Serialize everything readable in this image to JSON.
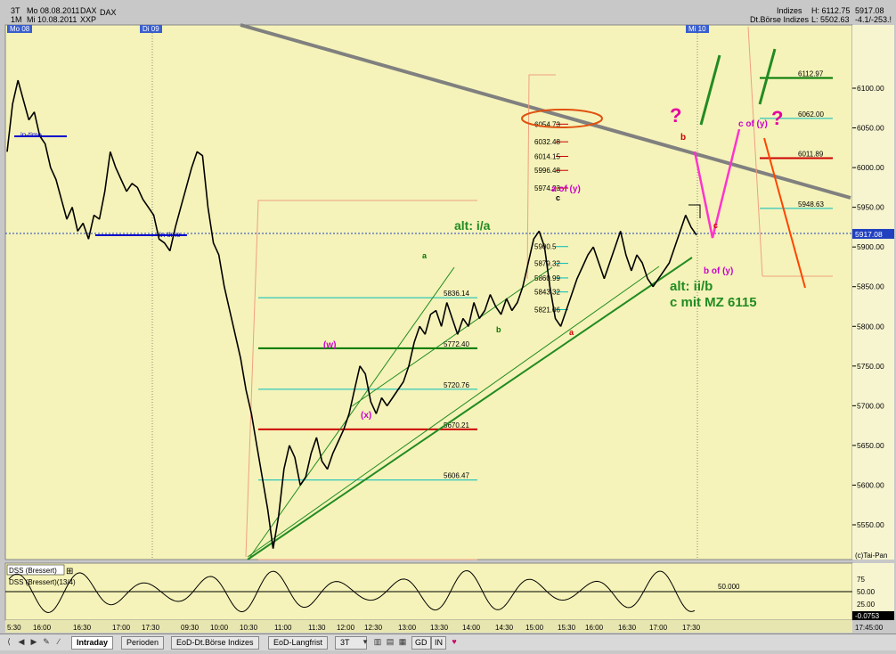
{
  "header": {
    "left": {
      "periods": [
        "3T",
        "1M"
      ],
      "dates": [
        "Mo 08.08.2011",
        "Mi 10.08.2011"
      ],
      "symbols": [
        "DAX",
        "XXP"
      ],
      "name": "DAX"
    },
    "right": {
      "group": "Indizes",
      "exchange": "Dt.Börse Indizes",
      "high": "H: 6112.75",
      "low": "L: 5502.63",
      "last": "5917.08",
      "change": "-4.1/-253.!"
    }
  },
  "day_tags": [
    "Mo 08",
    "Di 09",
    "Mi 10"
  ],
  "price_axis": {
    "labels": [
      "6100.00",
      "6050.00",
      "6000.00",
      "5950.00",
      "5900.00",
      "5850.00",
      "5800.00",
      "5750.00",
      "5700.00",
      "5650.00",
      "5600.00",
      "5550.00"
    ],
    "current": "5917.08",
    "credit": "(c)Tai-Pan"
  },
  "time_axis": {
    "labels": [
      "5:30",
      "16:00",
      "16:30",
      "17:00",
      "17:30",
      "09:30",
      "10:00",
      "10:30",
      "11:00",
      "11:30",
      "12:00",
      "12:30",
      "13:00",
      "13:30",
      "14:00",
      "14:30",
      "15:00",
      "15:30",
      "16:00",
      "16:30",
      "17:00",
      "17:30"
    ],
    "clock": "17:45:00"
  },
  "chart_data": {
    "type": "line",
    "title": "DAX",
    "ylim": [
      5505,
      6135
    ],
    "grid": false,
    "series": [
      {
        "values": [
          6020,
          6080,
          6110,
          6085,
          6060,
          6070,
          6040,
          6030,
          6000,
          5985,
          5960,
          5935,
          5950,
          5920,
          5930,
          5910,
          5940,
          5935,
          5970,
          6020,
          6000,
          5985,
          5970,
          5980,
          5975,
          5960,
          5950,
          5940,
          5910,
          5905,
          5895,
          5925,
          5950,
          5975,
          6000,
          6020,
          6015,
          5950,
          5905,
          5890,
          5850,
          5820,
          5790,
          5760,
          5720,
          5690,
          5650,
          5610,
          5570,
          5520,
          5560,
          5620,
          5650,
          5635,
          5600,
          5610,
          5640,
          5660,
          5630,
          5620,
          5640,
          5655,
          5670,
          5690,
          5720,
          5750,
          5740,
          5705,
          5690,
          5710,
          5700,
          5710,
          5720,
          5730,
          5750,
          5780,
          5800,
          5790,
          5815,
          5820,
          5800,
          5830,
          5810,
          5790,
          5810,
          5800,
          5830,
          5810,
          5820,
          5840,
          5825,
          5815,
          5835,
          5820,
          5830,
          5850,
          5880,
          5910,
          5920,
          5900,
          5850,
          5810,
          5800,
          5820,
          5840,
          5860,
          5875,
          5890,
          5900,
          5880,
          5860,
          5880,
          5900,
          5920,
          5890,
          5870,
          5890,
          5880,
          5860,
          5850,
          5860,
          5870,
          5880,
          5900,
          5920,
          5940,
          5925,
          5915
        ]
      }
    ],
    "levels": [
      {
        "label": "6112.97",
        "value": 6112.97,
        "color": "#007700"
      },
      {
        "label": "6062.00",
        "value": 6062.0,
        "color": "#00bbbb"
      },
      {
        "label": "6011.89",
        "value": 6011.89,
        "color": "#cc0000"
      },
      {
        "label": "5948.63",
        "value": 5948.63,
        "color": "#00bbbb"
      },
      {
        "label": "5836.14",
        "value": 5836.14,
        "color": "#00bbbb"
      },
      {
        "label": "5772.40",
        "value": 5772.4,
        "color": "#007700"
      },
      {
        "label": "5720.76",
        "value": 5720.76,
        "color": "#00bbbb"
      },
      {
        "label": "5670.21",
        "value": 5670.21,
        "color": "#cc0000"
      },
      {
        "label": "5606.47",
        "value": 5606.47,
        "color": "#00bbbb"
      }
    ],
    "fib_column": [
      "6054.73",
      "6032.48",
      "6014.15",
      "5996.48",
      "5974.23",
      "5900.5",
      "5879.32",
      "5860.99",
      "5843.32",
      "5821.06"
    ],
    "wave_labels": [
      {
        "text": "a of (y)",
        "color": "#cc00cc"
      },
      {
        "text": "c",
        "color": "#000000"
      },
      {
        "text": "a",
        "color": "#007700"
      },
      {
        "text": "b",
        "color": "#007700"
      },
      {
        "text": "a",
        "color": "#cc0000"
      },
      {
        "text": "(w)",
        "color": "#cc00cc"
      },
      {
        "text": "(x)",
        "color": "#cc00cc"
      },
      {
        "text": "b",
        "color": "#cc0000"
      },
      {
        "text": "c",
        "color": "#cc0000"
      },
      {
        "text": "c of (y)",
        "color": "#cc00cc"
      },
      {
        "text": "b of (y)",
        "color": "#cc00cc"
      },
      {
        "text": "?",
        "color": "#e600a0"
      },
      {
        "text": "?",
        "color": "#e600a0"
      }
    ],
    "annotations": [
      {
        "text": "alt: i/a",
        "color": "#228b22"
      },
      {
        "text": "alt: ii/b",
        "color": "#228b22"
      },
      {
        "text": "c mit MZ 6115",
        "color": "#228b22"
      },
      {
        "text": "in-time",
        "color": "#0000cc"
      },
      {
        "text": "in time",
        "color": "#0000cc"
      }
    ]
  },
  "indicator": {
    "name": "DSS (Bressert)",
    "params": "DSS (Bressert)(13/4)",
    "axis": [
      "75",
      "50.00",
      "25.00"
    ],
    "level_label": "50.000",
    "last": "-0.0753"
  },
  "tabs": {
    "items": [
      "Intraday",
      "Perioden",
      "EoD-Dt.Börse Indizes",
      "EoD-Langfrist"
    ],
    "active": "Intraday",
    "period_select": "3T",
    "toolbar": [
      "GD",
      "IN"
    ]
  }
}
